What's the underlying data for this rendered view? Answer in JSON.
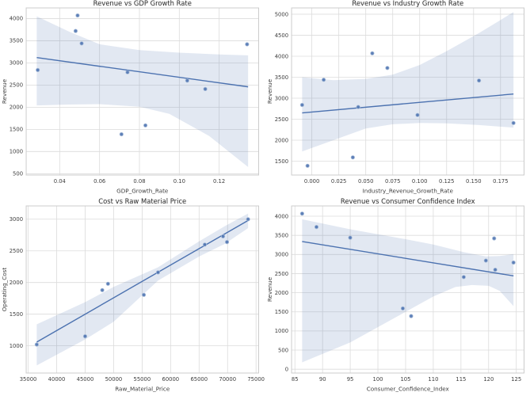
{
  "figure": {
    "background": "#ffffff",
    "layout": "2x2-subplot-grid"
  },
  "colors": {
    "accent": "#4c72b0",
    "trend_line": "#4c72b0",
    "scatter_point": "#4c72b0",
    "scatter_halo": "#a9bdd9",
    "confidence_band": "#4c72b0",
    "band_opacity": 0.16,
    "grid": "#dcdcdc",
    "spine": "#cccccc",
    "title_text": "#262626",
    "tick_text": "#3d3d3d"
  },
  "chart_data": [
    {
      "type": "scatter",
      "title": "Revenue vs GDP Growth Rate",
      "xlabel": "GDP_Growth_Rate",
      "ylabel": "Revenue",
      "grid": true,
      "legend": "none",
      "xlim": [
        0.0232,
        0.1398
      ],
      "ylim": [
        470,
        4240
      ],
      "xticks": [
        0.04,
        0.06,
        0.08,
        0.1,
        0.12
      ],
      "xtick_labels": [
        "0.04",
        "0.06",
        "0.08",
        "0.10",
        "0.12"
      ],
      "yticks": [
        500,
        1000,
        1500,
        2000,
        2500,
        3000,
        3500,
        4000
      ],
      "ytick_labels": [
        "500",
        "1000",
        "1500",
        "2000",
        "2500",
        "3000",
        "3500",
        "4000"
      ],
      "points": [
        [
          0.029,
          2840
        ],
        [
          0.048,
          3720
        ],
        [
          0.049,
          4070
        ],
        [
          0.051,
          3440
        ],
        [
          0.071,
          1390
        ],
        [
          0.074,
          2790
        ],
        [
          0.083,
          1590
        ],
        [
          0.104,
          2600
        ],
        [
          0.113,
          2410
        ],
        [
          0.134,
          3420
        ]
      ],
      "trend": [
        [
          0.0285,
          3120
        ],
        [
          0.1345,
          2460
        ]
      ],
      "ci_band": {
        "upper": [
          [
            0.0285,
            4050
          ],
          [
            0.045,
            3700
          ],
          [
            0.06,
            3420
          ],
          [
            0.08,
            3290
          ],
          [
            0.1,
            3230
          ],
          [
            0.12,
            3190
          ],
          [
            0.1345,
            3170
          ]
        ],
        "lower": [
          [
            0.0285,
            2040
          ],
          [
            0.045,
            2060
          ],
          [
            0.06,
            2070
          ],
          [
            0.08,
            2010
          ],
          [
            0.095,
            1850
          ],
          [
            0.115,
            1350
          ],
          [
            0.1345,
            650
          ]
        ]
      }
    },
    {
      "type": "scatter",
      "title": "Revenue vs Industry Growth Rate",
      "xlabel": "Industry_Revenue_Growth_Rate",
      "ylabel": "Revenue",
      "grid": true,
      "legend": "none",
      "xlim": [
        -0.0188,
        0.1968
      ],
      "ylim": [
        1170,
        5150
      ],
      "xticks": [
        0.0,
        0.025,
        0.05,
        0.075,
        0.1,
        0.125,
        0.15,
        0.175
      ],
      "xtick_labels": [
        "0.000",
        "0.025",
        "0.050",
        "0.075",
        "0.100",
        "0.125",
        "0.150",
        "0.175"
      ],
      "yticks": [
        1500,
        2000,
        2500,
        3000,
        3500,
        4000,
        4500,
        5000
      ],
      "ytick_labels": [
        "1500",
        "2000",
        "2500",
        "3000",
        "3500",
        "4000",
        "4500",
        "5000"
      ],
      "points": [
        [
          -0.009,
          2840
        ],
        [
          -0.004,
          1390
        ],
        [
          0.011,
          3440
        ],
        [
          0.038,
          1590
        ],
        [
          0.043,
          2790
        ],
        [
          0.056,
          4070
        ],
        [
          0.07,
          3720
        ],
        [
          0.098,
          2600
        ],
        [
          0.155,
          3420
        ],
        [
          0.187,
          2410
        ]
      ],
      "trend": [
        [
          -0.009,
          2650
        ],
        [
          0.187,
          3100
        ]
      ],
      "ci_band": {
        "upper": [
          [
            -0.009,
            3500
          ],
          [
            0.02,
            3430
          ],
          [
            0.05,
            3460
          ],
          [
            0.075,
            3560
          ],
          [
            0.1,
            3790
          ],
          [
            0.125,
            4120
          ],
          [
            0.155,
            4550
          ],
          [
            0.187,
            5050
          ]
        ],
        "lower": [
          [
            -0.009,
            1730
          ],
          [
            0.02,
            2000
          ],
          [
            0.05,
            2280
          ],
          [
            0.075,
            2380
          ],
          [
            0.1,
            2410
          ],
          [
            0.125,
            2400
          ],
          [
            0.155,
            2360
          ],
          [
            0.187,
            2300
          ]
        ]
      }
    },
    {
      "type": "scatter",
      "title": "Cost vs Raw Material Price",
      "xlabel": "Raw_Material_Price",
      "ylabel": "Operating_Cost",
      "grid": true,
      "legend": "none",
      "xlim": [
        34645,
        75455
      ],
      "ylim": [
        570,
        3210
      ],
      "xticks": [
        35000,
        40000,
        45000,
        50000,
        55000,
        60000,
        65000,
        70000,
        75000
      ],
      "xtick_labels": [
        "35000",
        "40000",
        "45000",
        "50000",
        "55000",
        "60000",
        "65000",
        "70000",
        "75000"
      ],
      "yticks": [
        1000,
        1500,
        2000,
        2500,
        3000
      ],
      "ytick_labels": [
        "1000",
        "1500",
        "2000",
        "2500",
        "3000"
      ],
      "points": [
        [
          36500,
          1020
        ],
        [
          45000,
          1150
        ],
        [
          48000,
          1880
        ],
        [
          49000,
          1980
        ],
        [
          55300,
          1805
        ],
        [
          57800,
          2160
        ],
        [
          66000,
          2600
        ],
        [
          69200,
          2730
        ],
        [
          69900,
          2640
        ],
        [
          73600,
          3000
        ]
      ],
      "trend": [
        [
          36500,
          1060
        ],
        [
          73600,
          2980
        ]
      ],
      "ci_band": {
        "upper": [
          [
            36500,
            1340
          ],
          [
            45000,
            1690
          ],
          [
            50000,
            1930
          ],
          [
            57800,
            2240
          ],
          [
            65000,
            2650
          ],
          [
            69500,
            2890
          ],
          [
            73600,
            3090
          ]
        ],
        "lower": [
          [
            36500,
            690
          ],
          [
            45000,
            1100
          ],
          [
            50000,
            1380
          ],
          [
            57800,
            2030
          ],
          [
            65000,
            2410
          ],
          [
            69500,
            2610
          ],
          [
            73600,
            2860
          ]
        ]
      }
    },
    {
      "type": "scatter",
      "title": "Revenue vs Consumer Confidence Index",
      "xlabel": "Consumer_Confidence_Index",
      "ylabel": "Revenue",
      "grid": true,
      "legend": "none",
      "xlim": [
        84.4,
        126.4
      ],
      "ylim": [
        -100,
        4270
      ],
      "xticks": [
        85,
        90,
        95,
        100,
        105,
        110,
        115,
        120,
        125
      ],
      "xtick_labels": [
        "85",
        "90",
        "95",
        "100",
        "105",
        "110",
        "115",
        "120",
        "125"
      ],
      "yticks": [
        0,
        500,
        1000,
        1500,
        2000,
        2500,
        3000,
        3500,
        4000
      ],
      "ytick_labels": [
        "0",
        "500",
        "1000",
        "1500",
        "2000",
        "2500",
        "3000",
        "3500",
        "4000"
      ],
      "points": [
        [
          86.3,
          4070
        ],
        [
          88.9,
          3720
        ],
        [
          95.0,
          3440
        ],
        [
          104.5,
          1590
        ],
        [
          106.0,
          1390
        ],
        [
          115.5,
          2410
        ],
        [
          119.5,
          2840
        ],
        [
          121.0,
          3420
        ],
        [
          121.2,
          2600
        ],
        [
          124.5,
          2790
        ]
      ],
      "trend": [
        [
          86.3,
          3340
        ],
        [
          124.5,
          2440
        ]
      ],
      "ci_band": {
        "upper": [
          [
            86.3,
            3920
          ],
          [
            95,
            3660
          ],
          [
            105,
            3400
          ],
          [
            110,
            3260
          ],
          [
            115.5,
            3060
          ],
          [
            119.5,
            2950
          ],
          [
            122,
            2960
          ],
          [
            124.5,
            3010
          ]
        ],
        "lower": [
          [
            86.3,
            180
          ],
          [
            95,
            700
          ],
          [
            105,
            1500
          ],
          [
            110,
            1900
          ],
          [
            114,
            2150
          ],
          [
            117,
            2200
          ],
          [
            120,
            2180
          ],
          [
            122,
            2050
          ],
          [
            124.5,
            1650
          ]
        ]
      }
    }
  ]
}
